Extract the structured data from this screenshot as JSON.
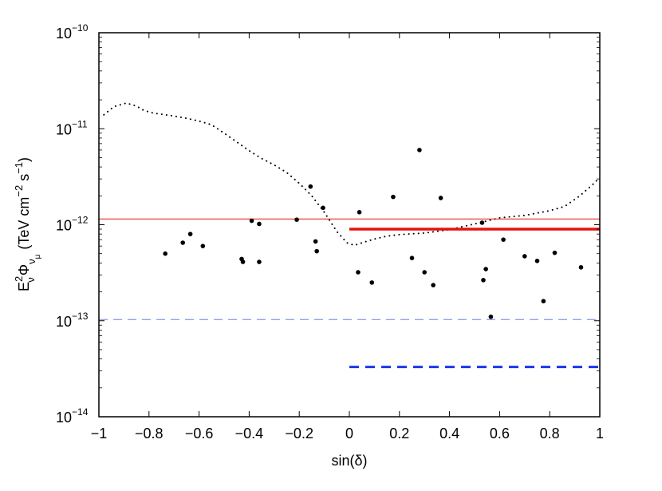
{
  "chart_data": {
    "type": "scatter",
    "title": "",
    "xlabel": "sin(δ)",
    "ylabel_parts": {
      "E": "E",
      "E_sup": "2",
      "E_sub": "ν",
      "Phi": "Φ",
      "Phi_sub": "ν",
      "Phi_subsub": "μ",
      "units": "(TeV cm",
      "cm_exp": "−2",
      "s": " s",
      "s_exp": "−1",
      "close": ")"
    },
    "xlim": [
      -1,
      1
    ],
    "ylim": [
      1e-14,
      1e-10
    ],
    "yscale": "log",
    "grid": false,
    "x_ticks": [
      -1,
      -0.8,
      -0.6,
      -0.4,
      -0.2,
      0,
      0.2,
      0.4,
      0.6,
      0.8,
      1
    ],
    "x_tick_labels": [
      "−1",
      "−0.8",
      "−0.6",
      "−0.4",
      "−0.2",
      "0",
      "0.2",
      "0.4",
      "0.6",
      "0.8",
      "1"
    ],
    "y_ticks": [
      1e-14,
      1e-13,
      1e-12,
      1e-11,
      1e-10
    ],
    "y_tick_labels": [
      {
        "base": "10",
        "exp": "−14"
      },
      {
        "base": "10",
        "exp": "−13"
      },
      {
        "base": "10",
        "exp": "−12"
      },
      {
        "base": "10",
        "exp": "−11"
      },
      {
        "base": "10",
        "exp": "−10"
      }
    ],
    "colors": {
      "points": "#000000",
      "red": "#e8120c",
      "blue_thin": "#6f7fe6",
      "blue_thick": "#1a39e6",
      "dotted": "#000000"
    },
    "points": [
      {
        "x": -0.735,
        "y": 5e-13
      },
      {
        "x": -0.665,
        "y": 6.5e-13
      },
      {
        "x": -0.635,
        "y": 8e-13
      },
      {
        "x": -0.585,
        "y": 6e-13
      },
      {
        "x": -0.43,
        "y": 4.4e-13
      },
      {
        "x": -0.425,
        "y": 4.1e-13
      },
      {
        "x": -0.39,
        "y": 1.1e-12
      },
      {
        "x": -0.36,
        "y": 1.02e-12
      },
      {
        "x": -0.36,
        "y": 4.1e-13
      },
      {
        "x": -0.21,
        "y": 1.13e-12
      },
      {
        "x": -0.155,
        "y": 2.5e-12
      },
      {
        "x": -0.135,
        "y": 6.7e-13
      },
      {
        "x": -0.13,
        "y": 5.3e-13
      },
      {
        "x": -0.105,
        "y": 1.5e-12
      },
      {
        "x": 0.035,
        "y": 3.2e-13
      },
      {
        "x": 0.04,
        "y": 1.35e-12
      },
      {
        "x": 0.09,
        "y": 2.5e-13
      },
      {
        "x": 0.175,
        "y": 1.95e-12
      },
      {
        "x": 0.25,
        "y": 4.5e-13
      },
      {
        "x": 0.28,
        "y": 6e-12
      },
      {
        "x": 0.3,
        "y": 3.2e-13
      },
      {
        "x": 0.335,
        "y": 2.35e-13
      },
      {
        "x": 0.365,
        "y": 1.9e-12
      },
      {
        "x": 0.53,
        "y": 1.05e-12
      },
      {
        "x": 0.535,
        "y": 2.65e-13
      },
      {
        "x": 0.545,
        "y": 3.45e-13
      },
      {
        "x": 0.565,
        "y": 1.1e-13
      },
      {
        "x": 0.615,
        "y": 7e-13
      },
      {
        "x": 0.7,
        "y": 4.7e-13
      },
      {
        "x": 0.75,
        "y": 4.2e-13
      },
      {
        "x": 0.775,
        "y": 1.6e-13
      },
      {
        "x": 0.82,
        "y": 5.1e-13
      },
      {
        "x": 0.925,
        "y": 3.6e-13
      }
    ],
    "hlines": [
      {
        "x0": -1,
        "x1": 1,
        "y": 1.15e-12,
        "color": "#e8120c",
        "width": 1,
        "dash": ""
      },
      {
        "x0": 0,
        "x1": 1,
        "y": 9e-13,
        "color": "#e8120c",
        "width": 3.5,
        "dash": ""
      },
      {
        "x0": -1,
        "x1": 1,
        "y": 1.03e-13,
        "color": "#6f7fe6",
        "width": 1,
        "dash": "11,7"
      },
      {
        "x0": 0,
        "x1": 1,
        "y": 3.3e-14,
        "color": "#1a39e6",
        "width": 3,
        "dash": "12,8"
      }
    ],
    "sensitivity_curve": [
      {
        "x": -0.98,
        "y": 1.4e-11
      },
      {
        "x": -0.94,
        "y": 1.7e-11
      },
      {
        "x": -0.89,
        "y": 1.85e-11
      },
      {
        "x": -0.85,
        "y": 1.72e-11
      },
      {
        "x": -0.82,
        "y": 1.55e-11
      },
      {
        "x": -0.78,
        "y": 1.45e-11
      },
      {
        "x": -0.72,
        "y": 1.38e-11
      },
      {
        "x": -0.66,
        "y": 1.3e-11
      },
      {
        "x": -0.6,
        "y": 1.2e-11
      },
      {
        "x": -0.55,
        "y": 1.1e-11
      },
      {
        "x": -0.5,
        "y": 9e-12
      },
      {
        "x": -0.45,
        "y": 7.3e-12
      },
      {
        "x": -0.4,
        "y": 5.9e-12
      },
      {
        "x": -0.35,
        "y": 4.9e-12
      },
      {
        "x": -0.3,
        "y": 4.2e-12
      },
      {
        "x": -0.25,
        "y": 3.5e-12
      },
      {
        "x": -0.2,
        "y": 2.7e-12
      },
      {
        "x": -0.15,
        "y": 2e-12
      },
      {
        "x": -0.1,
        "y": 1.35e-12
      },
      {
        "x": -0.05,
        "y": 8.5e-13
      },
      {
        "x": -0.01,
        "y": 6.5e-13
      },
      {
        "x": 0.02,
        "y": 6.1e-13
      },
      {
        "x": 0.06,
        "y": 6.6e-13
      },
      {
        "x": 0.1,
        "y": 7.1e-13
      },
      {
        "x": 0.15,
        "y": 7.6e-13
      },
      {
        "x": 0.2,
        "y": 7.9e-13
      },
      {
        "x": 0.3,
        "y": 8.2e-13
      },
      {
        "x": 0.4,
        "y": 8.9e-13
      },
      {
        "x": 0.5,
        "y": 1.02e-12
      },
      {
        "x": 0.6,
        "y": 1.18e-12
      },
      {
        "x": 0.7,
        "y": 1.25e-12
      },
      {
        "x": 0.8,
        "y": 1.4e-12
      },
      {
        "x": 0.86,
        "y": 1.55e-12
      },
      {
        "x": 0.92,
        "y": 2e-12
      },
      {
        "x": 0.97,
        "y": 2.6e-12
      },
      {
        "x": 1.0,
        "y": 3.1e-12
      }
    ]
  }
}
